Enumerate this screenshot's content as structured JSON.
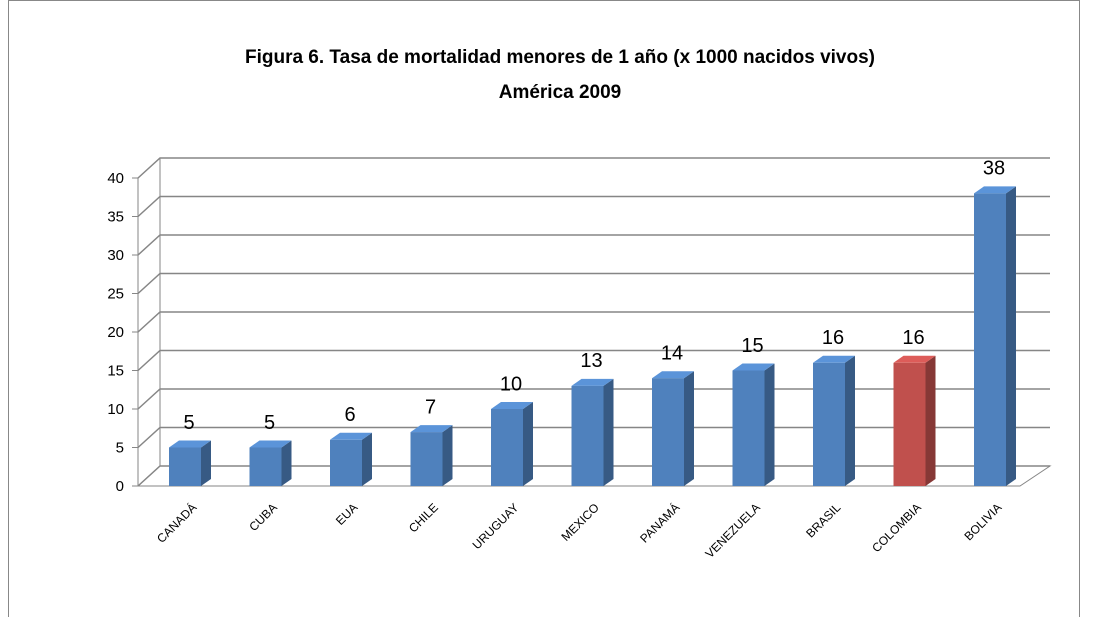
{
  "chart_data": {
    "type": "bar3d",
    "title": [
      "Figura 6. Tasa de mortalidad menores de 1 año (x 1000 nacidos vivos)",
      "América 2009"
    ],
    "categories": [
      "CANADÁ",
      "CUBA",
      "EUA",
      "CHILE",
      "URUGUAY",
      "MEXICO",
      "PANAMÁ",
      "VENEZUELA",
      "BRASIL",
      "COLOMBIA",
      "BOLIVIA"
    ],
    "values": [
      5,
      5,
      6,
      7,
      10,
      13,
      14,
      15,
      16,
      16,
      38
    ],
    "colors": [
      "#4f81bd",
      "#4f81bd",
      "#4f81bd",
      "#4f81bd",
      "#4f81bd",
      "#4f81bd",
      "#4f81bd",
      "#4f81bd",
      "#4f81bd",
      "#c0504d",
      "#4f81bd"
    ],
    "ylim": [
      0,
      40
    ],
    "yticks": [
      0,
      5,
      10,
      15,
      20,
      25,
      30,
      35,
      40
    ],
    "grid": true
  }
}
